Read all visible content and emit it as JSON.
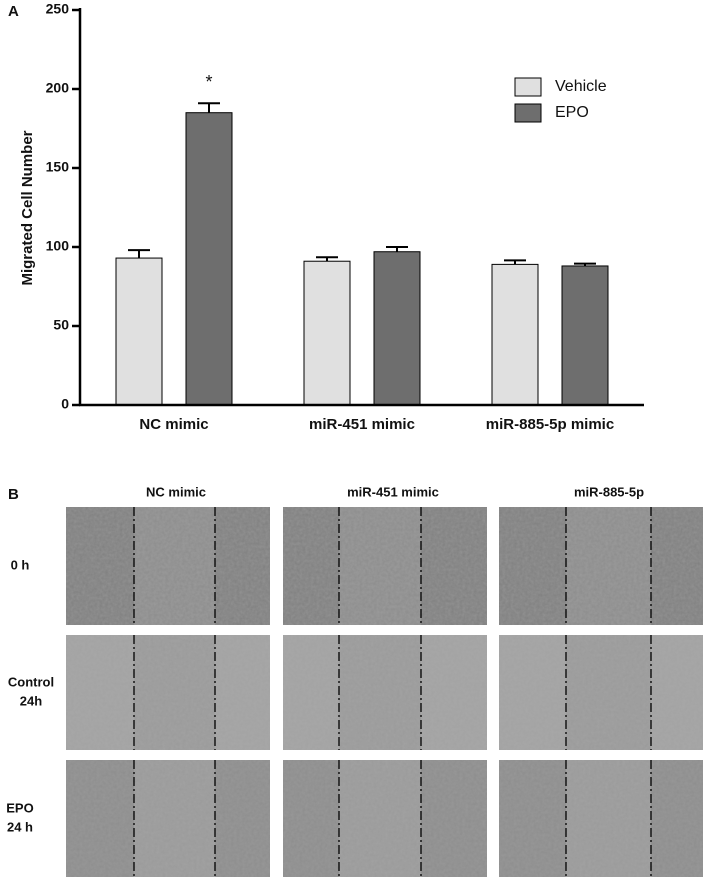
{
  "chart_data": {
    "type": "bar",
    "panel_label": "A",
    "y_label": "Migrated Cell Number",
    "categories": [
      "NC mimic",
      "miR-451 mimic",
      "miR-885-5p mimic"
    ],
    "series": [
      {
        "name": "Vehicle",
        "color": "#e0e0e0",
        "values": [
          93,
          91,
          89
        ],
        "errors": [
          5,
          2.5,
          2.5
        ]
      },
      {
        "name": "EPO",
        "color": "#6e6e6e",
        "values": [
          185,
          97,
          88
        ],
        "errors": [
          6,
          3,
          1.5
        ]
      }
    ],
    "ylim": [
      0,
      250
    ],
    "yticks": [
      0,
      50,
      100,
      150,
      200,
      250
    ],
    "annotation": "*",
    "legend": "upper right"
  },
  "panel_b": {
    "panel_label": "B",
    "columns": [
      "NC mimic",
      "miR-451 mimic",
      "miR-885-5p"
    ],
    "rows": [
      [
        "0 h"
      ],
      [
        "Control",
        "24h"
      ],
      [
        "EPO",
        "24 h"
      ]
    ]
  }
}
